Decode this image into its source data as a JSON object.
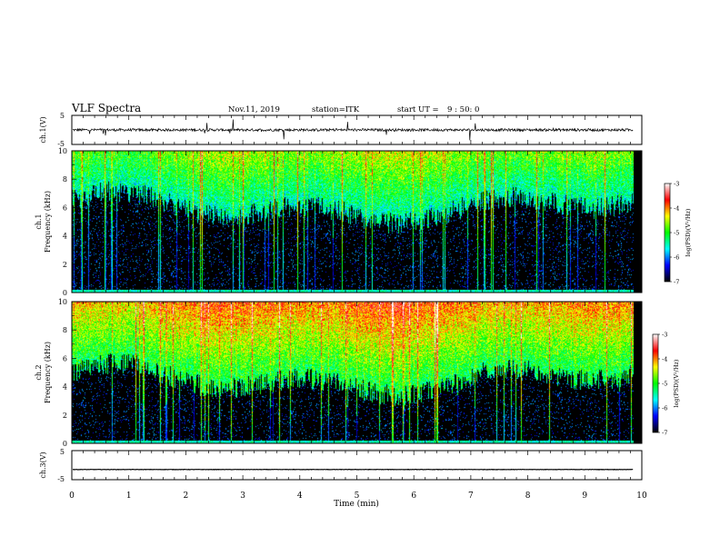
{
  "header": {
    "title": "VLF Spectra",
    "date": "Nov.11, 2019",
    "station": "station=ITK",
    "start_label": "start  UT =",
    "start_time": "9 : 50: 0"
  },
  "chart_data": [
    {
      "type": "line",
      "panel": "ch1-waveform",
      "ylabel": "ch.1(V)",
      "ylim": [
        -5,
        5
      ],
      "yticks": [
        "5",
        "-5"
      ],
      "baseline": 0,
      "color": "#000000"
    },
    {
      "type": "heatmap",
      "panel": "ch1-spectrogram",
      "ylabel_line1": "ch.1",
      "ylabel_line2": "Frequency  (kHz)",
      "ylim": [
        0,
        10
      ],
      "yticks": [
        "0",
        "2",
        "4",
        "6",
        "8",
        "10"
      ],
      "colorbar": {
        "label": "log(PSD)(V²/Hz)",
        "range": [
          -7,
          -3
        ],
        "ticks": [
          "-3",
          "-4",
          "-5",
          "-6",
          "-7"
        ],
        "colormap": [
          "#000000",
          "#0000ff",
          "#00ffff",
          "#00ff00",
          "#ffff00",
          "#ff0000",
          "#ffffff"
        ]
      },
      "noise_floor_khz": 6
    },
    {
      "type": "heatmap",
      "panel": "ch2-spectrogram",
      "ylabel_line1": "ch.2",
      "ylabel_line2": "Frequency  (kHz)",
      "ylim": [
        0,
        10
      ],
      "yticks": [
        "0",
        "2",
        "4",
        "6",
        "8",
        "10"
      ],
      "colorbar": {
        "label": "log(PSD)(V²/Hz)",
        "range": [
          -7,
          -3
        ],
        "ticks": [
          "-3",
          "-4",
          "-5",
          "-6",
          "-7"
        ],
        "colormap": [
          "#000000",
          "#0000ff",
          "#00ffff",
          "#00ff00",
          "#ffff00",
          "#ff0000",
          "#ffffff"
        ]
      },
      "noise_floor_khz": 4.5
    },
    {
      "type": "line",
      "panel": "ch3-waveform",
      "ylabel": "ch.3(V)",
      "ylim": [
        -5,
        5
      ],
      "yticks": [
        "5",
        "-5"
      ],
      "baseline": -1.5,
      "color": "#000000"
    }
  ],
  "xaxis": {
    "label": "Time  (min)",
    "range": [
      0,
      10
    ],
    "ticks": [
      "0",
      "1",
      "2",
      "3",
      "4",
      "5",
      "6",
      "7",
      "8",
      "9",
      "10"
    ],
    "data_end": 9.85
  }
}
